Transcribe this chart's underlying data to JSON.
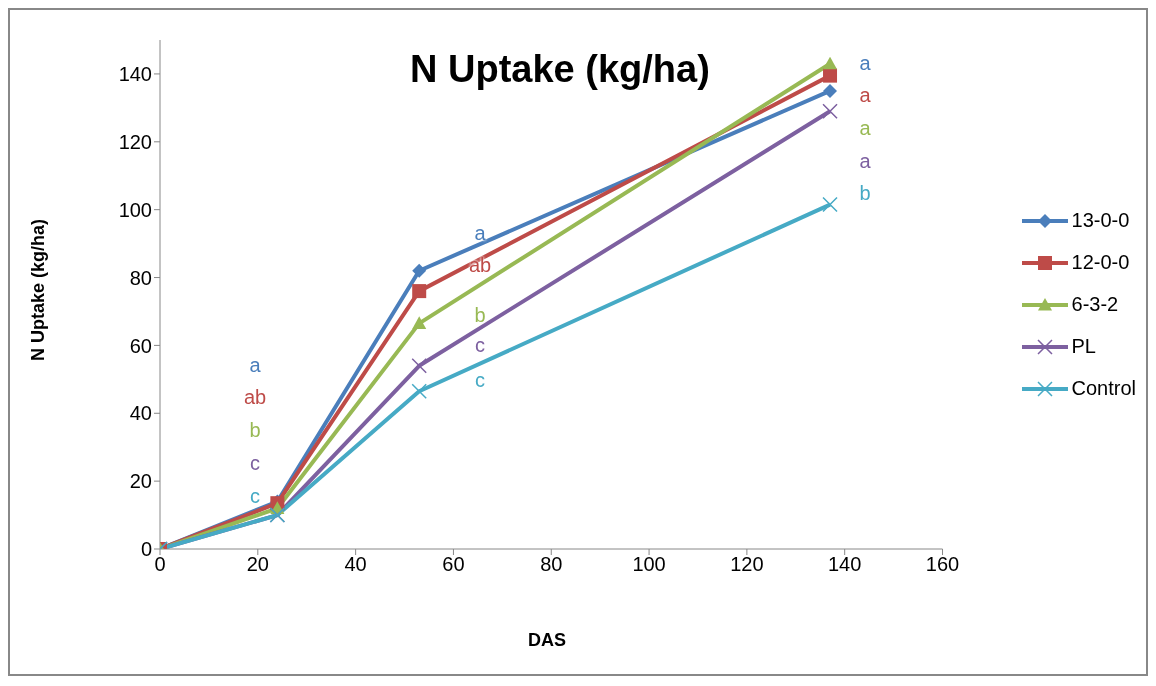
{
  "chart_data": {
    "type": "line",
    "title": "N Uptake (kg/ha)",
    "xlabel": "DAS",
    "ylabel": "N Uptake (kg/ha)",
    "x": [
      0,
      24,
      53,
      137
    ],
    "series": [
      {
        "name": "13-0-0",
        "color": "#4a7ebb",
        "marker": "diamond",
        "values": [
          0,
          14,
          82,
          135
        ]
      },
      {
        "name": "12-0-0",
        "color": "#be4b48",
        "marker": "square",
        "values": [
          0,
          13.5,
          76,
          139.5
        ]
      },
      {
        "name": "6-3-2",
        "color": "#98b954",
        "marker": "triangle",
        "values": [
          0,
          12,
          66.5,
          143
        ]
      },
      {
        "name": "PL",
        "color": "#7d60a0",
        "marker": "cross",
        "values": [
          0,
          10,
          54,
          129
        ]
      },
      {
        "name": "Control",
        "color": "#46aac5",
        "marker": "cross",
        "values": [
          0,
          10,
          46.5,
          101.5
        ]
      }
    ],
    "annotations": [
      "a",
      "ab",
      "b",
      "c",
      "c",
      "a",
      "ab",
      "b",
      "c",
      "c",
      "a",
      "a",
      "a",
      "a",
      "b"
    ],
    "xlim": [
      0,
      160
    ],
    "xticks": [
      0,
      20,
      40,
      60,
      80,
      100,
      120,
      140,
      160
    ],
    "ylim": [
      0,
      150
    ],
    "yticks": [
      0,
      20,
      40,
      60,
      80,
      100,
      120,
      140
    ],
    "grid": false,
    "legend": "right"
  }
}
